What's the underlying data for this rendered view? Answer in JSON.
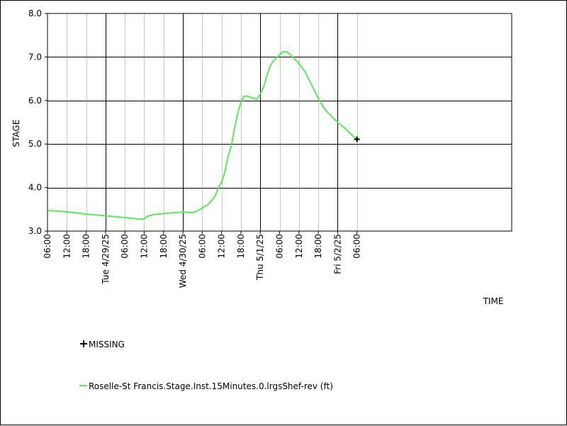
{
  "chart_data": {
    "type": "line",
    "title": "",
    "xlabel": "TIME",
    "ylabel": "STAGE",
    "y_ticks": [
      3.0,
      4.0,
      5.0,
      6.0,
      7.0,
      8.0
    ],
    "ylim": [
      3.0,
      8.0
    ],
    "x_range_hours": [
      6,
      150
    ],
    "x_ticks": [
      {
        "hour": 6,
        "label": "06:00"
      },
      {
        "hour": 12,
        "label": "12:00"
      },
      {
        "hour": 18,
        "label": "18:00"
      },
      {
        "hour": 24,
        "label": "Tue 4/29/25"
      },
      {
        "hour": 30,
        "label": "06:00"
      },
      {
        "hour": 36,
        "label": "12:00"
      },
      {
        "hour": 42,
        "label": "18:00"
      },
      {
        "hour": 48,
        "label": "Wed 4/30/25"
      },
      {
        "hour": 54,
        "label": "06:00"
      },
      {
        "hour": 60,
        "label": "12:00"
      },
      {
        "hour": 66,
        "label": "18:00"
      },
      {
        "hour": 72,
        "label": "Thu 5/1/25"
      },
      {
        "hour": 78,
        "label": "06:00"
      },
      {
        "hour": 84,
        "label": "12:00"
      },
      {
        "hour": 90,
        "label": "18:00"
      },
      {
        "hour": 96,
        "label": "Fri 5/2/25"
      },
      {
        "hour": 102,
        "label": "06:00"
      }
    ],
    "series": [
      {
        "name": "Roselle-St Francis.Stage.Inst.15Minutes.0.lrgsShef-rev (ft)",
        "color": "#55ee55",
        "points": [
          [
            6,
            3.47
          ],
          [
            9,
            3.46
          ],
          [
            12,
            3.44
          ],
          [
            15,
            3.42
          ],
          [
            18,
            3.39
          ],
          [
            21,
            3.37
          ],
          [
            24,
            3.35
          ],
          [
            27,
            3.33
          ],
          [
            30,
            3.31
          ],
          [
            33,
            3.29
          ],
          [
            34.5,
            3.27
          ],
          [
            36,
            3.28
          ],
          [
            37,
            3.34
          ],
          [
            39,
            3.38
          ],
          [
            42,
            3.4
          ],
          [
            45,
            3.42
          ],
          [
            48,
            3.44
          ],
          [
            51,
            3.42
          ],
          [
            53,
            3.48
          ],
          [
            54,
            3.53
          ],
          [
            56,
            3.62
          ],
          [
            58,
            3.8
          ],
          [
            59,
            4.0
          ],
          [
            60,
            4.12
          ],
          [
            61,
            4.35
          ],
          [
            62,
            4.7
          ],
          [
            63,
            4.95
          ],
          [
            64,
            5.35
          ],
          [
            65,
            5.7
          ],
          [
            66,
            5.97
          ],
          [
            67,
            6.1
          ],
          [
            68,
            6.1
          ],
          [
            69,
            6.07
          ],
          [
            70,
            6.05
          ],
          [
            71,
            6.03
          ],
          [
            72,
            6.15
          ],
          [
            73,
            6.3
          ],
          [
            74,
            6.55
          ],
          [
            75,
            6.78
          ],
          [
            76,
            6.9
          ],
          [
            77,
            6.98
          ],
          [
            78,
            7.05
          ],
          [
            79,
            7.12
          ],
          [
            80,
            7.12
          ],
          [
            81,
            7.08
          ],
          [
            82,
            7.0
          ],
          [
            83,
            6.93
          ],
          [
            84,
            6.85
          ],
          [
            85,
            6.75
          ],
          [
            86,
            6.65
          ],
          [
            87,
            6.5
          ],
          [
            88,
            6.35
          ],
          [
            89,
            6.2
          ],
          [
            90,
            6.05
          ],
          [
            91,
            5.93
          ],
          [
            92,
            5.8
          ],
          [
            93,
            5.72
          ],
          [
            94,
            5.65
          ],
          [
            95,
            5.57
          ],
          [
            96,
            5.5
          ],
          [
            97,
            5.44
          ],
          [
            98,
            5.38
          ],
          [
            99,
            5.31
          ],
          [
            100,
            5.24
          ],
          [
            101,
            5.17
          ],
          [
            102,
            5.11
          ]
        ]
      }
    ],
    "missing": {
      "label": "MISSING",
      "points": [
        [
          102,
          5.11
        ]
      ]
    },
    "grid": true
  }
}
